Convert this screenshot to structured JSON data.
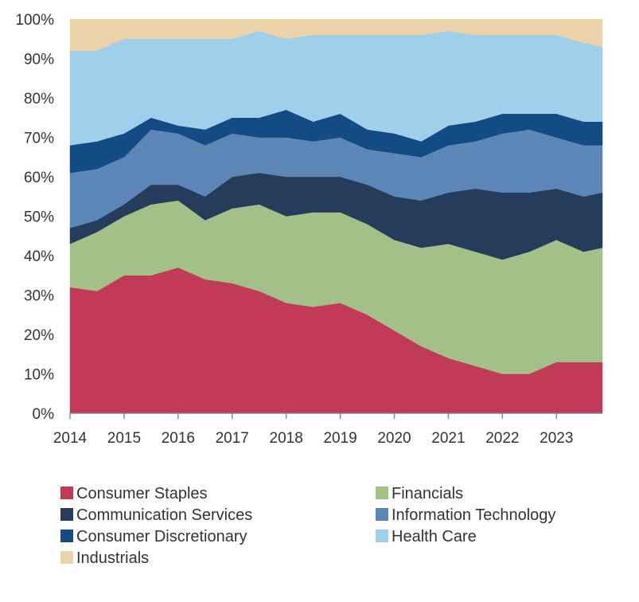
{
  "chart_data": {
    "type": "area",
    "stacked": true,
    "normalized": true,
    "title": "",
    "xlabel": "",
    "ylabel": "",
    "ylim": [
      0,
      100
    ],
    "xlim": [
      2014.0,
      2023.85
    ],
    "y_ticks": [
      0,
      10,
      20,
      30,
      40,
      50,
      60,
      70,
      80,
      90,
      100
    ],
    "y_tick_labels": [
      "0%",
      "10%",
      "20%",
      "30%",
      "40%",
      "50%",
      "60%",
      "70%",
      "80%",
      "90%",
      "100%"
    ],
    "x_ticks": [
      2014,
      2015,
      2016,
      2017,
      2018,
      2019,
      2020,
      2021,
      2022,
      2023
    ],
    "x_tick_labels": [
      "2014",
      "2015",
      "2016",
      "2017",
      "2018",
      "2019",
      "2020",
      "2021",
      "2022",
      "2023"
    ],
    "grid": false,
    "legend_position": "bottom",
    "x": [
      2014.0,
      2014.5,
      2015.0,
      2015.5,
      2016.0,
      2016.5,
      2017.0,
      2017.5,
      2018.0,
      2018.5,
      2019.0,
      2019.5,
      2020.0,
      2020.5,
      2021.0,
      2021.5,
      2022.0,
      2022.5,
      2023.0,
      2023.5,
      2023.85
    ],
    "series": [
      {
        "name": "Consumer Staples",
        "color": "#c23b56",
        "values": [
          32,
          31,
          35,
          35,
          37,
          34,
          33,
          31,
          28,
          27,
          28,
          25,
          21,
          17,
          14,
          12,
          10,
          10,
          13,
          13,
          13
        ]
      },
      {
        "name": "Financials",
        "color": "#a3c088",
        "values": [
          11,
          15,
          15,
          18,
          17,
          15,
          19,
          22,
          22,
          24,
          23,
          23,
          23,
          25,
          29,
          29,
          29,
          31,
          31,
          28,
          29
        ]
      },
      {
        "name": "Communication Services",
        "color": "#253c5a",
        "values": [
          4,
          3,
          3,
          5,
          4,
          6,
          8,
          8,
          10,
          9,
          9,
          10,
          11,
          12,
          13,
          16,
          17,
          15,
          13,
          14,
          14
        ]
      },
      {
        "name": "Information Technology",
        "color": "#5b86b6",
        "values": [
          14,
          13,
          12,
          14,
          13,
          13,
          11,
          9,
          10,
          9,
          10,
          9,
          11,
          11,
          12,
          12,
          15,
          16,
          13,
          13,
          12
        ]
      },
      {
        "name": "Consumer Discretionary",
        "color": "#134b85",
        "values": [
          7,
          7,
          6,
          3,
          2,
          4,
          4,
          5,
          7,
          5,
          6,
          5,
          5,
          4,
          5,
          5,
          5,
          4,
          6,
          6,
          6
        ]
      },
      {
        "name": "Health Care",
        "color": "#9fcfea",
        "values": [
          24,
          23,
          24,
          20,
          22,
          23,
          20,
          22,
          18,
          22,
          20,
          24,
          25,
          27,
          24,
          22,
          20,
          20,
          20,
          20,
          19
        ]
      },
      {
        "name": "Industrials",
        "color": "#ecd2a8",
        "values": [
          8,
          8,
          5,
          5,
          5,
          5,
          5,
          3,
          5,
          4,
          4,
          4,
          4,
          4,
          3,
          4,
          4,
          4,
          4,
          6,
          7
        ]
      }
    ]
  }
}
